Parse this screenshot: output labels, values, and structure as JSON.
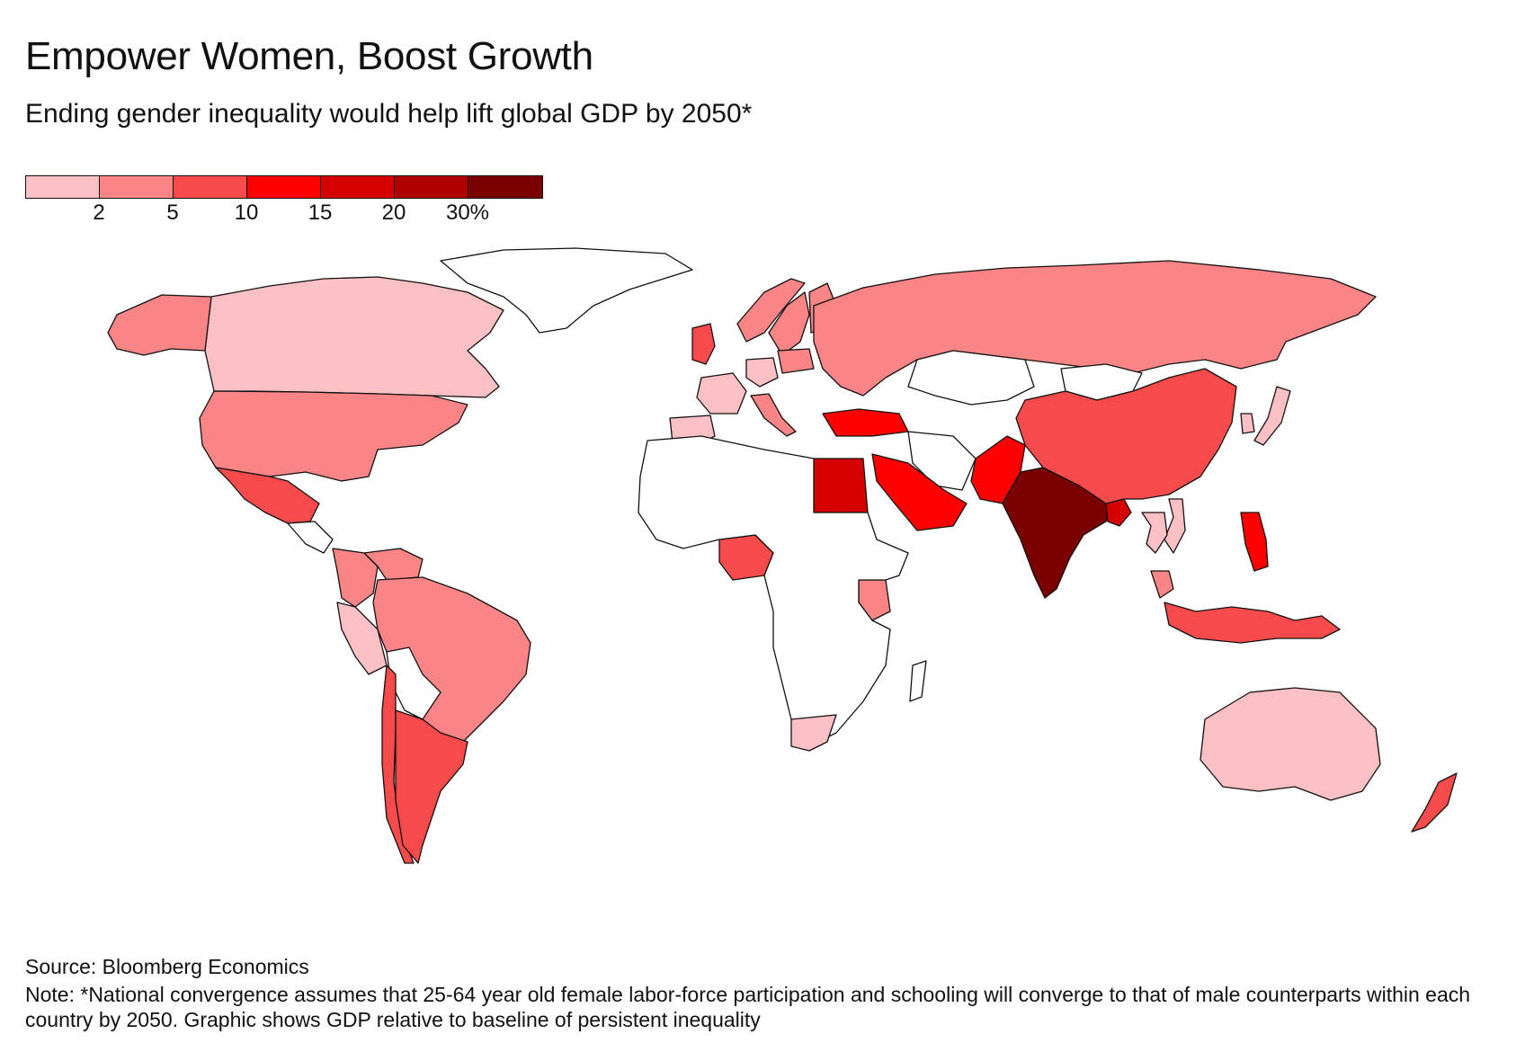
{
  "header": {
    "title": "Empower Women, Boost Growth",
    "subtitle": "Ending gender inequality would help lift global GDP by 2050*"
  },
  "legend": {
    "colors": [
      "#fbc0c3",
      "#f98586",
      "#f74b4b",
      "#ff0000",
      "#d60000",
      "#b00000",
      "#7a0000"
    ],
    "ticks": [
      "2",
      "5",
      "10",
      "15",
      "20",
      "30%"
    ]
  },
  "colors": {
    "no_data": "#ffffff",
    "border": "#111111"
  },
  "map_data": {
    "regions": [
      {
        "name": "Canada",
        "bin": 0
      },
      {
        "name": "Alaska (United States)",
        "bin": 1
      },
      {
        "name": "United States",
        "bin": 1
      },
      {
        "name": "Mexico",
        "bin": 2
      },
      {
        "name": "Colombia",
        "bin": 1
      },
      {
        "name": "Venezuela",
        "bin": 1
      },
      {
        "name": "Brazil",
        "bin": 1
      },
      {
        "name": "Peru",
        "bin": 0
      },
      {
        "name": "Chile",
        "bin": 2
      },
      {
        "name": "Argentina",
        "bin": 2
      },
      {
        "name": "Russia",
        "bin": 1
      },
      {
        "name": "China",
        "bin": 2
      },
      {
        "name": "India",
        "bin": 6
      },
      {
        "name": "Pakistan",
        "bin": 3
      },
      {
        "name": "Bangladesh",
        "bin": 4
      },
      {
        "name": "Turkey",
        "bin": 3
      },
      {
        "name": "Egypt",
        "bin": 4
      },
      {
        "name": "Saudi Arabia",
        "bin": 3
      },
      {
        "name": "Nigeria",
        "bin": 2
      },
      {
        "name": "Kenya",
        "bin": 1
      },
      {
        "name": "South Africa",
        "bin": 0
      },
      {
        "name": "Australia",
        "bin": 0
      },
      {
        "name": "Indonesia",
        "bin": 2
      },
      {
        "name": "Philippines",
        "bin": 3
      },
      {
        "name": "Malaysia",
        "bin": 1
      },
      {
        "name": "Vietnam",
        "bin": 0
      },
      {
        "name": "Thailand",
        "bin": 0
      },
      {
        "name": "Japan",
        "bin": 0
      },
      {
        "name": "South Korea",
        "bin": 0
      },
      {
        "name": "New Zealand",
        "bin": 2
      },
      {
        "name": "United Kingdom",
        "bin": 2
      },
      {
        "name": "France",
        "bin": 0
      },
      {
        "name": "Spain",
        "bin": 0
      },
      {
        "name": "Germany",
        "bin": 0
      },
      {
        "name": "Italy",
        "bin": 1
      },
      {
        "name": "Poland",
        "bin": 1
      },
      {
        "name": "Sweden",
        "bin": 1
      },
      {
        "name": "Norway",
        "bin": 1
      },
      {
        "name": "Finland",
        "bin": 1
      },
      {
        "name": "Greenland",
        "bin": null
      },
      {
        "name": "Kazakhstan",
        "bin": null
      },
      {
        "name": "Iran",
        "bin": null
      },
      {
        "name": "Mongolia",
        "bin": null
      },
      {
        "name": "Africa (other)",
        "bin": null
      }
    ]
  },
  "footer": {
    "source": "Source: Bloomberg Economics",
    "note": "Note: *National convergence assumes that 25-64 year old female labor-force participation and schooling will converge to that of male counterparts within each country by 2050. Graphic shows GDP relative to baseline of persistent inequality"
  }
}
